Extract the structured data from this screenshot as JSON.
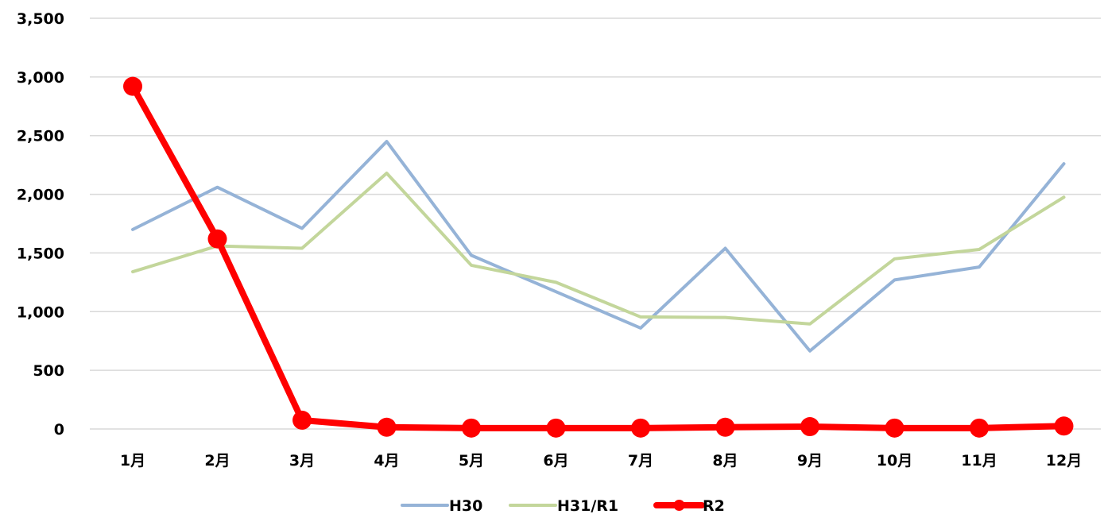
{
  "chart_data": {
    "type": "line",
    "title": "",
    "xlabel": "",
    "ylabel": "",
    "categories": [
      "1月",
      "2月",
      "3月",
      "4月",
      "5月",
      "6月",
      "7月",
      "8月",
      "9月",
      "10月",
      "11月",
      "12月"
    ],
    "ylim": [
      0,
      3500
    ],
    "yticks": [
      0,
      500,
      1000,
      1500,
      2000,
      2500,
      3000,
      3500
    ],
    "ytick_labels": [
      "0",
      "500",
      "1,000",
      "1,500",
      "2,000",
      "2,500",
      "3,000",
      "3,500"
    ],
    "grid": true,
    "legend_position": "bottom",
    "series": [
      {
        "name": "H30",
        "color": "#95b3d7",
        "markers": false,
        "values": [
          1700,
          2060,
          1710,
          2450,
          1480,
          1170,
          860,
          1540,
          665,
          1270,
          1380,
          2260
        ]
      },
      {
        "name": "H31/R1",
        "color": "#c3d69b",
        "markers": false,
        "values": [
          1340,
          1560,
          1540,
          2180,
          1395,
          1250,
          955,
          950,
          895,
          1450,
          1530,
          1975
        ]
      },
      {
        "name": "R2",
        "color": "#ff0000",
        "markers": true,
        "values": [
          2920,
          1620,
          75,
          15,
          8,
          8,
          8,
          15,
          20,
          8,
          8,
          25
        ]
      }
    ]
  }
}
